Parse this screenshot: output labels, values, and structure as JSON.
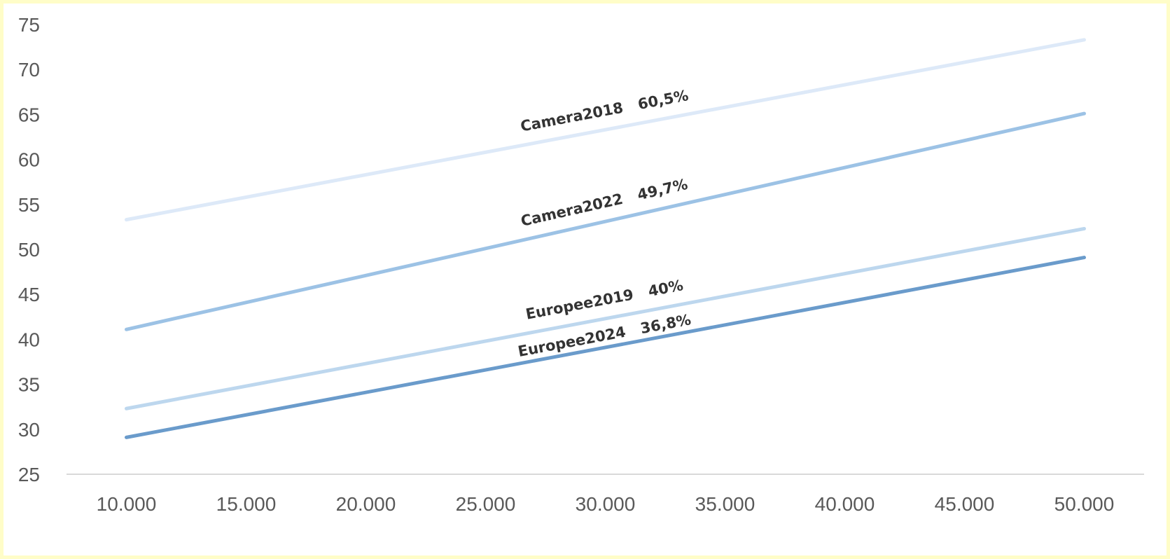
{
  "chart_data": {
    "type": "line",
    "title": "",
    "xlabel": "",
    "ylabel": "",
    "x": [
      10000,
      50000
    ],
    "xticks": [
      10000,
      15000,
      20000,
      25000,
      30000,
      35000,
      40000,
      45000,
      50000
    ],
    "xtick_labels": [
      "10.000",
      "15.000",
      "20.000",
      "25.000",
      "30.000",
      "35.000",
      "40.000",
      "45.000",
      "50.000"
    ],
    "yticks": [
      25,
      30,
      35,
      40,
      45,
      50,
      55,
      60,
      65,
      70,
      75
    ],
    "ytick_labels": [
      "25",
      "30",
      "35",
      "40",
      "45",
      "50",
      "55",
      "60",
      "65",
      "70",
      "75"
    ],
    "xlim": [
      7500,
      52500
    ],
    "ylim": [
      25,
      75
    ],
    "grid": false,
    "legend": "none",
    "series": [
      {
        "name": "Camera2018",
        "label": "Camera2018   60,5%",
        "values": [
          53.3,
          73.3
        ],
        "color": "#dde9f8"
      },
      {
        "name": "Camera2022",
        "label": "Camera2022   49,7%",
        "values": [
          41.1,
          65.1
        ],
        "color": "#9cc2e5"
      },
      {
        "name": "Europee2019",
        "label": "Europee2019   40%",
        "values": [
          32.3,
          52.3
        ],
        "color": "#bdd7ee"
      },
      {
        "name": "Europee2024",
        "label": "Europee2024   36,8%",
        "values": [
          29.1,
          49.1
        ],
        "color": "#6a9bcb"
      }
    ]
  }
}
